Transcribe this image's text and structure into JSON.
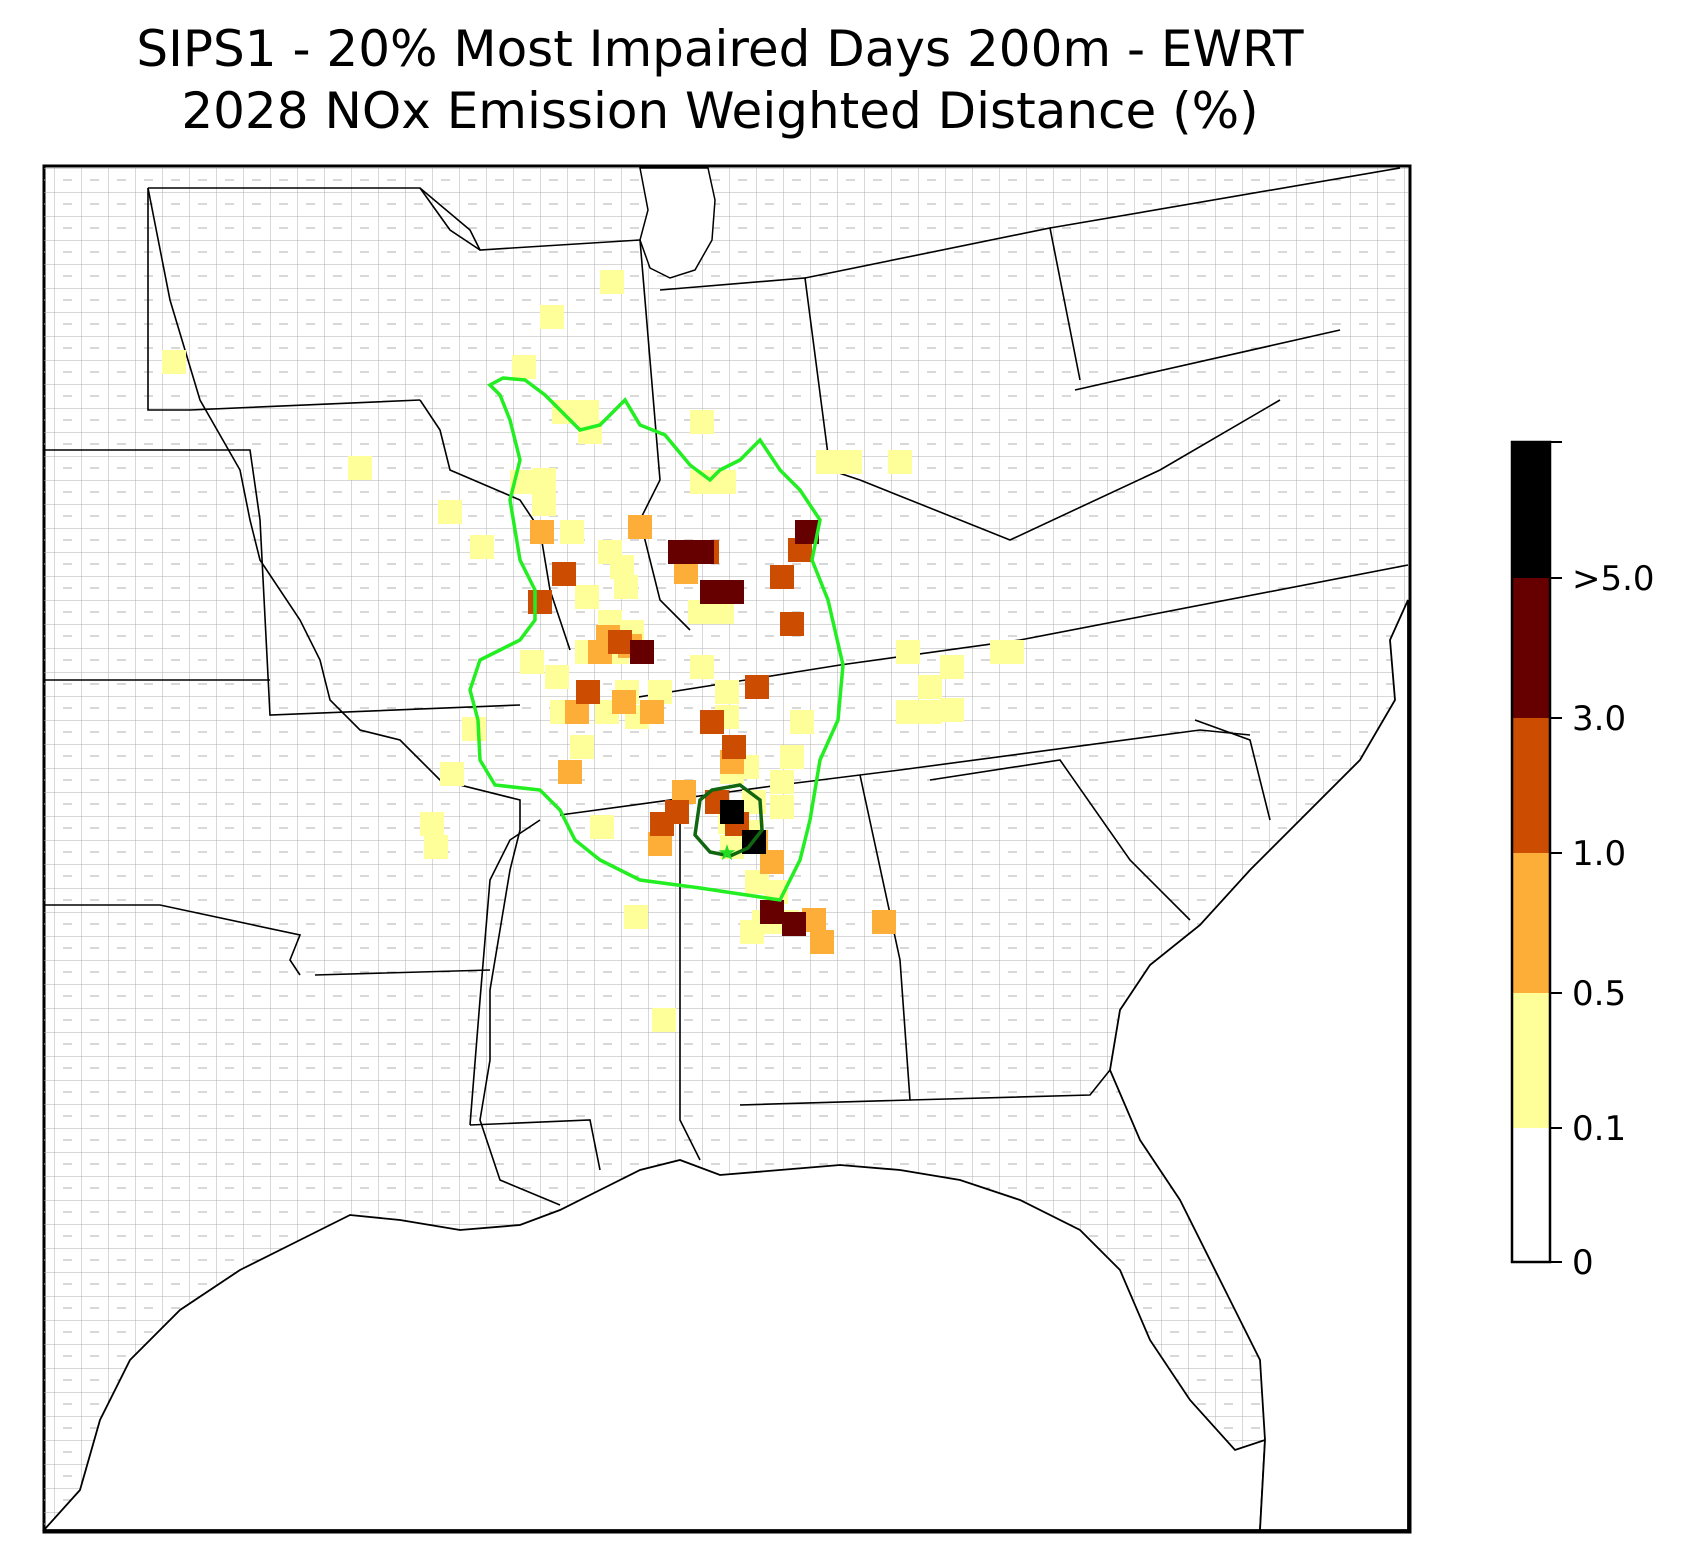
{
  "title": {
    "line1": "SIPS1 - 20% Most Impaired Days 200m - EWRT",
    "line2": "2028 NOx Emission Weighted Distance (%)"
  },
  "colorbar": {
    "labels": [
      "0",
      "0.1",
      "0.5",
      "1.0",
      "3.0",
      ">5.0"
    ],
    "colors": [
      "#ffffff",
      "#ffff99",
      "#fdae38",
      "#cc4c02",
      "#660000",
      "#000000"
    ]
  },
  "legend_colors": {
    "outer_contour": "#22ee22",
    "inner_contour": "#116611",
    "source_marker": "#22dd22"
  },
  "cells_low": [
    [
      162,
      350
    ],
    [
      348,
      456
    ],
    [
      600,
      270
    ],
    [
      470,
      535
    ],
    [
      438,
      500
    ],
    [
      540,
      305
    ],
    [
      512,
      355
    ],
    [
      552,
      400
    ],
    [
      575,
      400
    ],
    [
      578,
      420
    ],
    [
      532,
      468
    ],
    [
      532,
      492
    ],
    [
      510,
      470
    ],
    [
      560,
      520
    ],
    [
      598,
      540
    ],
    [
      610,
      555
    ],
    [
      614,
      575
    ],
    [
      575,
      585
    ],
    [
      598,
      610
    ],
    [
      620,
      620
    ],
    [
      605,
      640
    ],
    [
      630,
      640
    ],
    [
      575,
      640
    ],
    [
      545,
      665
    ],
    [
      550,
      700
    ],
    [
      570,
      735
    ],
    [
      595,
      700
    ],
    [
      615,
      680
    ],
    [
      625,
      705
    ],
    [
      648,
      680
    ],
    [
      690,
      410
    ],
    [
      690,
      470
    ],
    [
      712,
      470
    ],
    [
      688,
      600
    ],
    [
      710,
      600
    ],
    [
      690,
      655
    ],
    [
      715,
      680
    ],
    [
      715,
      705
    ],
    [
      720,
      760
    ],
    [
      735,
      755
    ],
    [
      742,
      790
    ],
    [
      770,
      795
    ],
    [
      718,
      810
    ],
    [
      720,
      835
    ],
    [
      740,
      820
    ],
    [
      745,
      870
    ],
    [
      752,
      910
    ],
    [
      775,
      910
    ],
    [
      740,
      920
    ],
    [
      764,
      880
    ],
    [
      780,
      745
    ],
    [
      790,
      710
    ],
    [
      770,
      770
    ],
    [
      816,
      450
    ],
    [
      838,
      450
    ],
    [
      888,
      450
    ],
    [
      896,
      640
    ],
    [
      940,
      655
    ],
    [
      918,
      700
    ],
    [
      896,
      700
    ],
    [
      918,
      675
    ],
    [
      940,
      698
    ],
    [
      990,
      640
    ],
    [
      1000,
      640
    ],
    [
      462,
      717
    ],
    [
      440,
      762
    ],
    [
      420,
      812
    ],
    [
      424,
      835
    ],
    [
      652,
      1008
    ],
    [
      590,
      815
    ],
    [
      624,
      905
    ],
    [
      520,
      650
    ]
  ],
  "cells_mid": [
    [
      530,
      520
    ],
    [
      628,
      515
    ],
    [
      596,
      625
    ],
    [
      618,
      634
    ],
    [
      588,
      640
    ],
    [
      648,
      832
    ],
    [
      672,
      780
    ],
    [
      720,
      750
    ],
    [
      760,
      850
    ],
    [
      744,
      830
    ],
    [
      802,
      908
    ],
    [
      810,
      930
    ],
    [
      872,
      910
    ],
    [
      558,
      760
    ],
    [
      680,
      540
    ],
    [
      700,
      580
    ],
    [
      674,
      560
    ],
    [
      612,
      690
    ],
    [
      640,
      700
    ],
    [
      565,
      700
    ]
  ],
  "cells_dark": [
    [
      552,
      562
    ],
    [
      528,
      590
    ],
    [
      576,
      680
    ],
    [
      700,
      710
    ],
    [
      722,
      735
    ],
    [
      665,
      800
    ],
    [
      705,
      790
    ],
    [
      725,
      812
    ],
    [
      695,
      540
    ],
    [
      780,
      612
    ],
    [
      745,
      675
    ],
    [
      770,
      565
    ],
    [
      788,
      538
    ],
    [
      608,
      630
    ],
    [
      650,
      812
    ]
  ],
  "cells_deep": [
    [
      668,
      540
    ],
    [
      690,
      540
    ],
    [
      700,
      580
    ],
    [
      720,
      580
    ],
    [
      760,
      900
    ],
    [
      782,
      912
    ],
    [
      795,
      520
    ],
    [
      630,
      640
    ]
  ],
  "cells_black": [
    [
      720,
      800
    ],
    [
      742,
      830
    ]
  ]
}
